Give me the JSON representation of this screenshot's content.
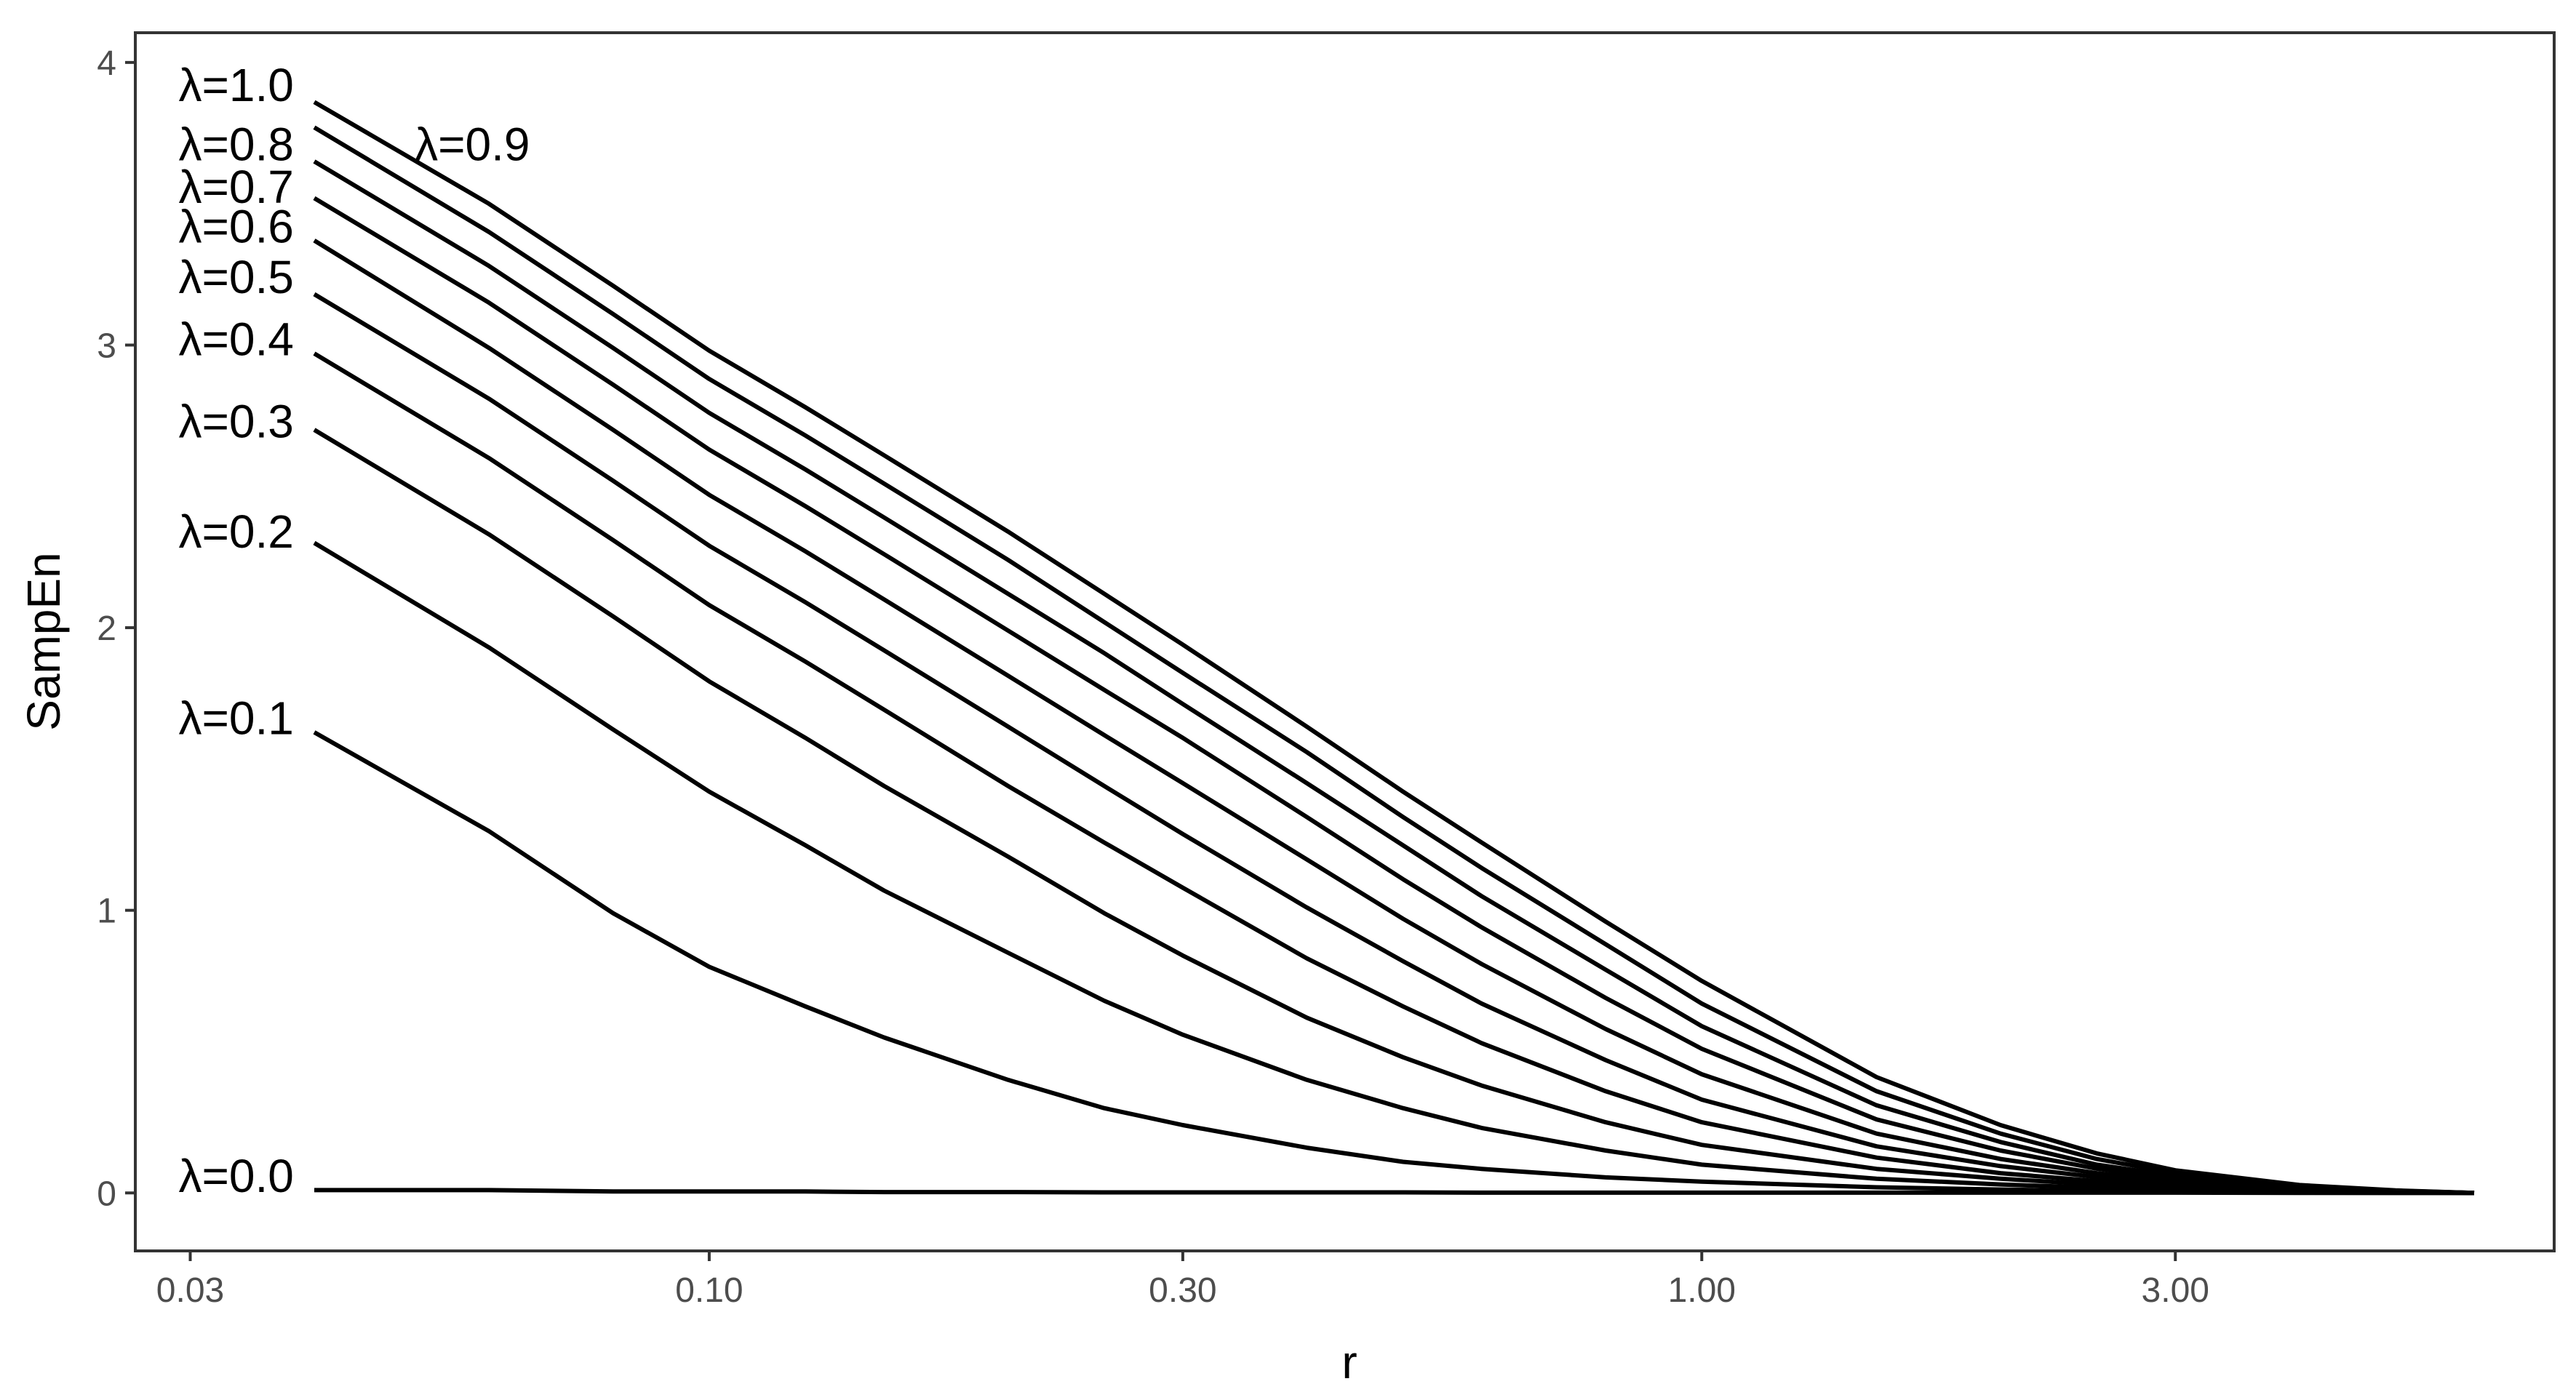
{
  "chart_data": {
    "type": "line",
    "title": "",
    "xlabel": "r",
    "ylabel": "SampEn",
    "x_scale": "log",
    "xlim": [
      0.0265,
      7.2
    ],
    "ylim": [
      -0.2,
      4.1
    ],
    "x_ticks": [
      0.03,
      0.1,
      0.3,
      1.0,
      3.0
    ],
    "x_tick_labels": [
      "0.03",
      "0.10",
      "0.30",
      "1.00",
      "3.00"
    ],
    "y_ticks": [
      0,
      1,
      2,
      3,
      4
    ],
    "y_tick_labels": [
      "0",
      "1",
      "2",
      "3",
      "4"
    ],
    "grid": false,
    "legend": "none",
    "series_colors": [
      "#000000"
    ],
    "x": [
      0.04,
      0.06,
      0.08,
      0.1,
      0.125,
      0.15,
      0.2,
      0.25,
      0.3,
      0.4,
      0.5,
      0.6,
      0.8,
      1.0,
      1.5,
      2.0,
      2.5,
      3.0,
      4.0,
      5.0,
      6.0
    ],
    "series": [
      {
        "name": "λ=0.0",
        "label_text": "λ=0.0",
        "values": [
          0.01,
          0.01,
          0.005,
          0.005,
          0.005,
          0.003,
          0.003,
          0.002,
          0.002,
          0.002,
          0.002,
          0.001,
          0.001,
          0.001,
          0.001,
          0.001,
          0.001,
          0.001,
          0.0,
          0.0,
          0.0
        ]
      },
      {
        "name": "λ=0.1",
        "label_text": "λ=0.1",
        "values": [
          1.63,
          1.28,
          0.99,
          0.8,
          0.66,
          0.55,
          0.4,
          0.3,
          0.24,
          0.16,
          0.11,
          0.085,
          0.055,
          0.04,
          0.02,
          0.012,
          0.007,
          0.004,
          0.001,
          0.0,
          0.0
        ]
      },
      {
        "name": "λ=0.2",
        "label_text": "λ=0.2",
        "values": [
          2.3,
          1.93,
          1.64,
          1.42,
          1.23,
          1.07,
          0.85,
          0.68,
          0.56,
          0.4,
          0.3,
          0.23,
          0.15,
          0.1,
          0.05,
          0.03,
          0.018,
          0.011,
          0.004,
          0.001,
          0.0
        ]
      },
      {
        "name": "λ=0.3",
        "label_text": "λ=0.3",
        "values": [
          2.7,
          2.33,
          2.04,
          1.81,
          1.61,
          1.44,
          1.19,
          0.99,
          0.84,
          0.62,
          0.48,
          0.38,
          0.25,
          0.17,
          0.085,
          0.05,
          0.03,
          0.018,
          0.007,
          0.002,
          0.0
        ]
      },
      {
        "name": "λ=0.4",
        "label_text": "λ=0.4",
        "values": [
          2.97,
          2.6,
          2.31,
          2.08,
          1.88,
          1.71,
          1.44,
          1.24,
          1.08,
          0.83,
          0.66,
          0.53,
          0.36,
          0.25,
          0.125,
          0.07,
          0.042,
          0.026,
          0.01,
          0.003,
          0.0
        ]
      },
      {
        "name": "λ=0.5",
        "label_text": "λ=0.5",
        "values": [
          3.18,
          2.81,
          2.52,
          2.29,
          2.09,
          1.92,
          1.65,
          1.44,
          1.27,
          1.01,
          0.82,
          0.67,
          0.47,
          0.33,
          0.165,
          0.095,
          0.056,
          0.034,
          0.013,
          0.004,
          0.0
        ]
      },
      {
        "name": "λ=0.6",
        "label_text": "λ=0.6",
        "values": [
          3.37,
          2.99,
          2.7,
          2.47,
          2.27,
          2.1,
          1.83,
          1.62,
          1.45,
          1.18,
          0.97,
          0.81,
          0.58,
          0.42,
          0.21,
          0.12,
          0.07,
          0.042,
          0.016,
          0.005,
          0.0
        ]
      },
      {
        "name": "λ=0.7",
        "label_text": "λ=0.7",
        "values": [
          3.52,
          3.15,
          2.86,
          2.63,
          2.43,
          2.26,
          1.99,
          1.78,
          1.61,
          1.33,
          1.11,
          0.94,
          0.69,
          0.51,
          0.26,
          0.15,
          0.086,
          0.05,
          0.019,
          0.006,
          0.0
        ]
      },
      {
        "name": "λ=0.8",
        "label_text": "λ=0.8",
        "values": [
          3.65,
          3.28,
          2.99,
          2.76,
          2.56,
          2.39,
          2.12,
          1.91,
          1.73,
          1.45,
          1.23,
          1.05,
          0.79,
          0.59,
          0.31,
          0.18,
          0.1,
          0.06,
          0.022,
          0.007,
          0.0
        ]
      },
      {
        "name": "λ=0.9",
        "label_text": "λ=0.9",
        "values": [
          3.77,
          3.4,
          3.11,
          2.88,
          2.68,
          2.51,
          2.24,
          2.02,
          1.84,
          1.56,
          1.33,
          1.15,
          0.88,
          0.67,
          0.36,
          0.21,
          0.12,
          0.07,
          0.025,
          0.008,
          0.0
        ]
      },
      {
        "name": "λ=1.0",
        "label_text": "λ=1.0",
        "values": [
          3.86,
          3.5,
          3.21,
          2.98,
          2.78,
          2.61,
          2.34,
          2.12,
          1.94,
          1.65,
          1.42,
          1.24,
          0.96,
          0.75,
          0.41,
          0.24,
          0.14,
          0.08,
          0.028,
          0.009,
          0.0
        ]
      }
    ],
    "label_placement": [
      {
        "series": "λ=1.0",
        "x": 0.0292,
        "y": 3.92
      },
      {
        "series": "λ=0.9",
        "x": 0.0505,
        "y": 3.71
      },
      {
        "series": "λ=0.8",
        "x": 0.0292,
        "y": 3.71
      },
      {
        "series": "λ=0.7",
        "x": 0.0292,
        "y": 3.56
      },
      {
        "series": "λ=0.6",
        "x": 0.0292,
        "y": 3.42
      },
      {
        "series": "λ=0.5",
        "x": 0.0292,
        "y": 3.24
      },
      {
        "series": "λ=0.4",
        "x": 0.0292,
        "y": 3.02
      },
      {
        "series": "λ=0.3",
        "x": 0.0292,
        "y": 2.73
      },
      {
        "series": "λ=0.2",
        "x": 0.0292,
        "y": 2.34
      },
      {
        "series": "λ=0.1",
        "x": 0.0292,
        "y": 1.68
      },
      {
        "series": "λ=0.0",
        "x": 0.0292,
        "y": 0.06
      }
    ]
  }
}
